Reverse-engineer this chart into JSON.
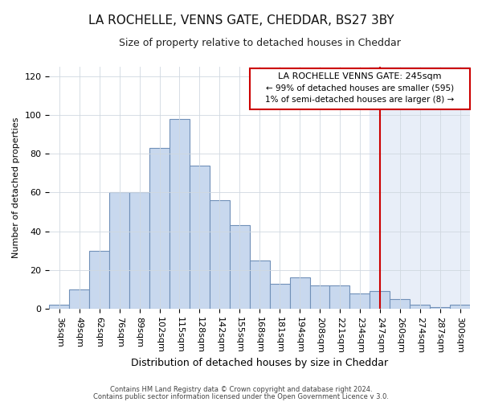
{
  "title": "LA ROCHELLE, VENNS GATE, CHEDDAR, BS27 3BY",
  "subtitle": "Size of property relative to detached houses in Cheddar",
  "xlabel": "Distribution of detached houses by size in Cheddar",
  "ylabel": "Number of detached properties",
  "bar_color": "#c8d8ee",
  "bar_edge_color": "#7090b8",
  "background_color": "#ffffff",
  "plot_bg_color": "#ffffff",
  "right_shade_color": "#e8eef8",
  "categories": [
    "36sqm",
    "49sqm",
    "62sqm",
    "76sqm",
    "89sqm",
    "102sqm",
    "115sqm",
    "128sqm",
    "142sqm",
    "155sqm",
    "168sqm",
    "181sqm",
    "194sqm",
    "208sqm",
    "221sqm",
    "234sqm",
    "247sqm",
    "260sqm",
    "274sqm",
    "287sqm",
    "300sqm"
  ],
  "values": [
    2,
    10,
    30,
    60,
    60,
    83,
    98,
    74,
    56,
    43,
    25,
    13,
    16,
    12,
    12,
    8,
    9,
    5,
    2,
    1,
    2
  ],
  "red_line_index": 16,
  "red_line_color": "#cc0000",
  "annotation_text_line1": "LA ROCHELLE VENNS GATE: 245sqm",
  "annotation_text_line2": "← 99% of detached houses are smaller (595)",
  "annotation_text_line3": "1% of semi-detached houses are larger (8) →",
  "annotation_box_color": "#cc0000",
  "annotation_fill_color": "#ffffff",
  "ylim": [
    0,
    125
  ],
  "yticks": [
    0,
    20,
    40,
    60,
    80,
    100,
    120
  ],
  "grid_color": "#d0d8e0",
  "title_fontsize": 11,
  "subtitle_fontsize": 9,
  "ylabel_fontsize": 8,
  "xlabel_fontsize": 9,
  "tick_fontsize": 8,
  "ann_fontsize_title": 8,
  "ann_fontsize_body": 7.5,
  "footer_line1": "Contains HM Land Registry data © Crown copyright and database right 2024.",
  "footer_line2": "Contains public sector information licensed under the Open Government Licence v 3.0."
}
